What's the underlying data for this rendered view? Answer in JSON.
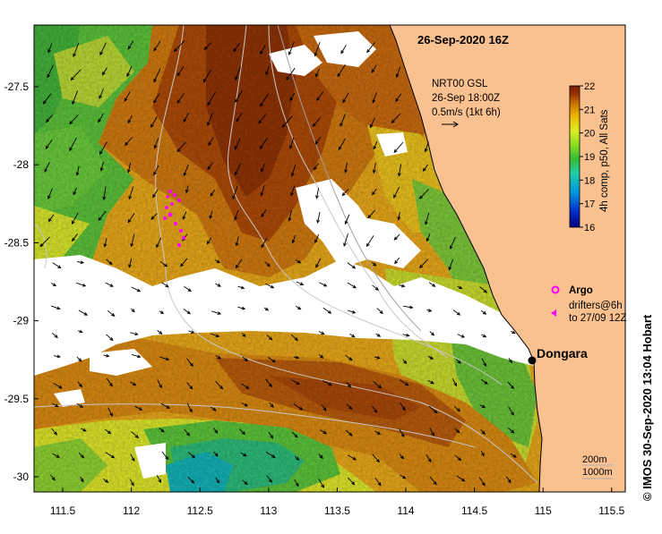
{
  "map": {
    "title": "26-Sep-2020 16Z",
    "current_legend": {
      "line1": "NRT00 GSL",
      "line2": "26-Sep 18:00Z",
      "line3": "0.5m/s (1kt 6h)"
    },
    "colorbar": {
      "label": "4h comp, p50, All Sats",
      "ticks": [
        "22",
        "21",
        "20",
        "19",
        "18",
        "17",
        "16"
      ],
      "min": 16,
      "max": 22,
      "colors": [
        "#000080",
        "#0033cc",
        "#0099dd",
        "#22ccaa",
        "#33bb33",
        "#88dd22",
        "#ddee22",
        "#eebb00",
        "#cc7700",
        "#993300",
        "#7a2000"
      ]
    },
    "argo_label": "Argo",
    "drifters_line1": "drifters@6h",
    "drifters_line2": "to 27/09 12Z",
    "city": "Dongara",
    "depth_legend": {
      "line1": "200m",
      "line2": "1000m"
    },
    "credit": "©  IMOS 30-Sep-2020 13:04 Hobart",
    "x_ticks": [
      "111.5",
      "112",
      "112.5",
      "113",
      "113.5",
      "114",
      "114.5",
      "115",
      "115.5"
    ],
    "y_ticks": [
      "-27.5",
      "-28",
      "-28.5",
      "-29",
      "-29.5",
      "-30"
    ],
    "colors": {
      "land": "#f9c18f",
      "no_data": "#ffffff",
      "argo": "#ff00ff",
      "contour": "#c8c8c8"
    }
  }
}
